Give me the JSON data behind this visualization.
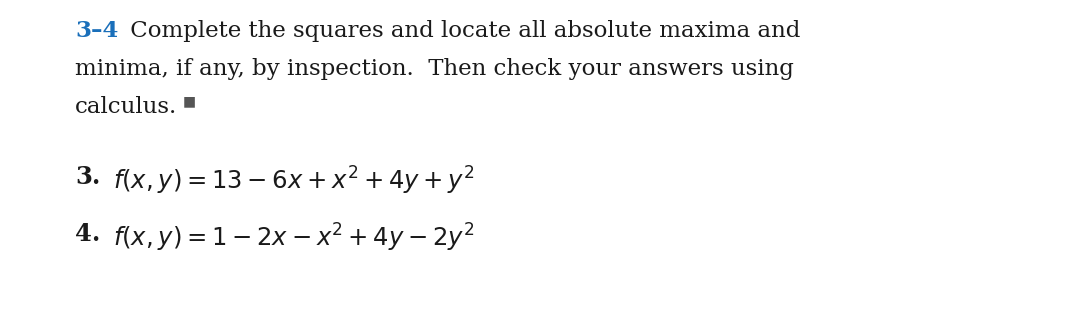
{
  "background_color": "#ffffff",
  "header_label": "3–4",
  "header_color": "#1a6fba",
  "header_line1_rest": " Complete the squares and locate all absolute maxima and",
  "header_line2": "minima, if any, by inspection.  Then check your answers using",
  "header_line3": "calculus. ■",
  "square_color": "#555555",
  "item3_num": "3.",
  "item3_text": "$f(x, y) = 13 - 6x + x^2 + 4y + y^2$",
  "item4_num": "4.",
  "item4_text": "$f(x, y) = 1 - 2x - x^2 + 4y - 2y^2$",
  "text_color": "#1a1a1a",
  "font_size_header": 16.5,
  "font_size_items": 17.5,
  "figsize": [
    10.8,
    3.09
  ],
  "dpi": 100
}
